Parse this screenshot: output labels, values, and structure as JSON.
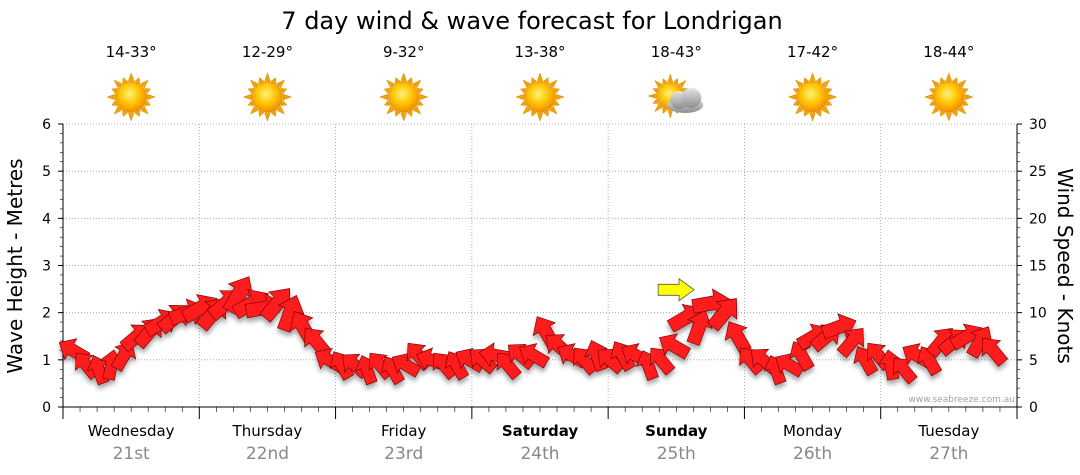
{
  "chart_data": {
    "type": "line",
    "title": "7 day wind & wave forecast for Londrigan",
    "ylabel_left": "Wave Height - Metres",
    "ylabel_right": "Wind Speed - Knots",
    "ylim_left": [
      0,
      6
    ],
    "ylim_right": [
      0,
      30
    ],
    "left_ticks": [
      "0",
      "1",
      "2",
      "3",
      "4",
      "5",
      "6"
    ],
    "right_ticks": [
      "0",
      "5",
      "10",
      "15",
      "20",
      "25",
      "30"
    ],
    "grid": "dotted",
    "watermark": "www.seabreeze.com.au",
    "days": [
      {
        "name": "Wednesday",
        "date": "21st",
        "temp": "14-33°",
        "icon": "sun-icon",
        "bold": false
      },
      {
        "name": "Thursday",
        "date": "22nd",
        "temp": "12-29°",
        "icon": "sun-icon",
        "bold": false
      },
      {
        "name": "Friday",
        "date": "23rd",
        "temp": "9-32°",
        "icon": "sun-icon",
        "bold": false
      },
      {
        "name": "Saturday",
        "date": "24th",
        "temp": "13-38°",
        "icon": "sun-icon",
        "bold": true
      },
      {
        "name": "Sunday",
        "date": "25th",
        "temp": "18-43°",
        "icon": "sun-cloud-icon",
        "bold": true
      },
      {
        "name": "Monday",
        "date": "26th",
        "temp": "17-42°",
        "icon": "sun-icon",
        "bold": false
      },
      {
        "name": "Tuesday",
        "date": "27th",
        "temp": "18-44°",
        "icon": "sun-icon",
        "bold": false
      }
    ],
    "wind_series": {
      "name": "",
      "unit": "knots",
      "step_hours": 3,
      "speed": [
        6.0,
        4.5,
        4.0,
        4.5,
        5.5,
        7.5,
        8.0,
        9.0,
        9.5,
        10.0,
        10.5,
        10.0,
        11.0,
        12.0,
        11.0,
        10.5,
        11.0,
        10.0,
        8.5,
        7.0,
        5.0,
        4.5,
        4.5,
        4.0,
        4.5,
        4.0,
        4.5,
        5.5,
        5.0,
        4.5,
        4.5,
        5.0,
        5.0,
        5.5,
        4.5,
        5.5,
        5.5,
        8.0,
        6.5,
        5.5,
        5.0,
        5.5,
        5.0,
        5.5,
        5.5,
        4.5,
        5.0,
        6.5,
        9.5,
        8.5,
        11.0,
        10.0,
        7.5,
        5.0,
        5.0,
        4.0,
        4.5,
        5.5,
        7.5,
        7.5,
        8.5,
        7.0,
        5.0,
        5.5,
        4.5,
        4.0,
        5.5,
        5.0,
        7.0,
        7.0,
        7.5,
        7.0,
        6.0
      ],
      "direction_deg": [
        300,
        320,
        340,
        10,
        30,
        50,
        40,
        60,
        50,
        70,
        60,
        40,
        50,
        30,
        60,
        80,
        40,
        20,
        330,
        320,
        300,
        330,
        310,
        340,
        320,
        330,
        300,
        320,
        290,
        320,
        330,
        300,
        310,
        280,
        320,
        310,
        300,
        330,
        310,
        300,
        320,
        340,
        310,
        330,
        300,
        340,
        320,
        300,
        60,
        20,
        80,
        40,
        330,
        320,
        310,
        340,
        300,
        330,
        60,
        50,
        70,
        40,
        330,
        320,
        350,
        320,
        300,
        330,
        40,
        50,
        60,
        30,
        320
      ],
      "wave_height_m": [
        1.0,
        0.9,
        0.8,
        0.9,
        1.1,
        1.3,
        1.5,
        1.7,
        1.8,
        1.9,
        1.9,
        2.0,
        2.1,
        2.3,
        2.2,
        2.1,
        2.2,
        2.0,
        1.6,
        1.2,
        0.9,
        0.8,
        0.8,
        0.8,
        0.8,
        0.8,
        0.8,
        0.9,
        0.9,
        0.9,
        0.9,
        0.9,
        0.9,
        1.0,
        0.9,
        1.0,
        1.1,
        1.3,
        1.1,
        1.0,
        1.0,
        1.0,
        1.0,
        1.0,
        1.0,
        0.9,
        1.0,
        1.3,
        1.7,
        1.6,
        2.0,
        1.9,
        1.4,
        1.0,
        0.9,
        0.8,
        0.9,
        1.0,
        1.3,
        1.4,
        1.6,
        1.3,
        0.9,
        0.9,
        0.8,
        0.8,
        1.0,
        1.0,
        1.2,
        1.3,
        1.4,
        1.2,
        1.1
      ]
    },
    "current_marker": {
      "speed": 12.0,
      "direction_deg": 90,
      "color": "#ffff00"
    },
    "colors": {
      "arrow_fill": "#ff1a1a",
      "arrow_stroke": "#6b0000",
      "grid": "#999999",
      "axis": "#000000",
      "date_text": "#888888"
    }
  }
}
